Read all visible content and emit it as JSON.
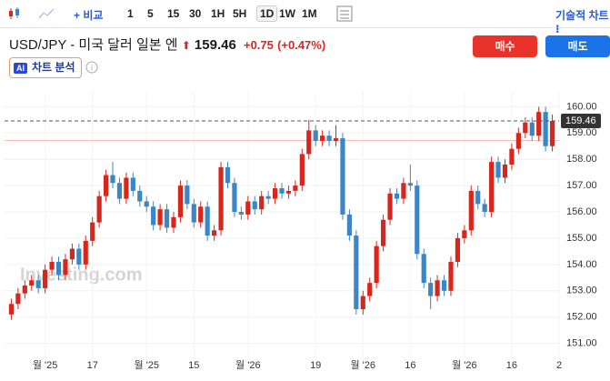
{
  "toolbar": {
    "compare": "+ 비교",
    "intervals": [
      "1",
      "5",
      "15",
      "30",
      "1H",
      "5H",
      "1D",
      "1W",
      "1M"
    ],
    "active_interval": "1D",
    "chart_mode": "기술적 차트 ⁝"
  },
  "header": {
    "title": "USD/JPY - 미국 달러 일본 엔",
    "change": "+0.75",
    "change_pct": "(+0.47%)",
    "buy": "매수",
    "sell": "매도",
    "ai_badge": "AI",
    "ai_label": "차트 분석",
    "watermark": "Investing.com"
  },
  "chart_data": {
    "type": "candlestick",
    "last_price": 159.46,
    "reference_line": 158.71,
    "up_color": "#d9261c",
    "down_color": "#3d86c6",
    "grid": true,
    "xlim": [
      -1,
      81
    ],
    "xticks": [
      {
        "value": 5,
        "label": "월 '25"
      },
      {
        "value": 12,
        "label": "17"
      },
      {
        "value": 20,
        "label": "월 '25"
      },
      {
        "value": 27,
        "label": "15"
      },
      {
        "value": 35,
        "label": "월 '26"
      },
      {
        "value": 45,
        "label": "19"
      },
      {
        "value": 52,
        "label": "월 '26"
      },
      {
        "value": 59,
        "label": "16"
      },
      {
        "value": 67,
        "label": "월 '26"
      },
      {
        "value": 74,
        "label": "16"
      },
      {
        "value": 81,
        "label": "2"
      }
    ],
    "ylim": [
      150.4,
      160.6
    ],
    "yticks": [
      {
        "value": 151,
        "label": "151.00"
      },
      {
        "value": 152,
        "label": "152.00"
      },
      {
        "value": 153,
        "label": "153.00"
      },
      {
        "value": 154,
        "label": "154.00"
      },
      {
        "value": 155,
        "label": "155.00"
      },
      {
        "value": 156,
        "label": "156.00"
      },
      {
        "value": 157,
        "label": "157.00"
      },
      {
        "value": 158,
        "label": "158.00"
      },
      {
        "value": 159,
        "label": "159.00"
      },
      {
        "value": 160,
        "label": "160.00"
      }
    ],
    "open": [
      152.1,
      152.5,
      152.9,
      153.2,
      153.4,
      153.1,
      153.8,
      154.1,
      153.6,
      154.2,
      154.6,
      154.0,
      154.9,
      155.6,
      156.6,
      157.4,
      157.1,
      156.5,
      157.3,
      156.8,
      156.4,
      156.2,
      155.5,
      156.1,
      155.4,
      155.8,
      157.0,
      156.3,
      155.6,
      156.2,
      155.1,
      155.3,
      157.7,
      157.1,
      156.0,
      155.9,
      156.4,
      156.1,
      156.6,
      156.5,
      156.9,
      156.7,
      156.8,
      157.0,
      158.2,
      159.1,
      158.7,
      158.9,
      158.7,
      158.8,
      155.9,
      155.1,
      152.3,
      152.8,
      153.3,
      154.7,
      155.7,
      156.7,
      156.5,
      157.1,
      157.0,
      154.4,
      153.3,
      152.8,
      153.4,
      153.0,
      154.1,
      155.0,
      155.3,
      156.8,
      156.3,
      156.0,
      157.9,
      157.3,
      157.8,
      158.4,
      159.0,
      159.4,
      158.9,
      159.8,
      158.5
    ],
    "high": [
      152.7,
      153.1,
      153.4,
      153.6,
      153.6,
      154.0,
      154.3,
      154.3,
      154.4,
      154.8,
      154.8,
      155.1,
      155.8,
      156.8,
      157.6,
      157.9,
      157.3,
      157.5,
      157.5,
      157.0,
      156.6,
      156.4,
      156.3,
      156.3,
      156.0,
      157.2,
      157.2,
      156.5,
      156.4,
      156.4,
      155.5,
      157.9,
      157.9,
      157.3,
      156.2,
      156.6,
      156.6,
      156.8,
      156.8,
      157.1,
      157.1,
      157.0,
      157.2,
      158.4,
      159.5,
      159.3,
      159.1,
      159.1,
      159.3,
      159.0,
      156.1,
      155.3,
      153.0,
      153.5,
      154.9,
      155.9,
      156.9,
      156.9,
      157.3,
      157.8,
      157.2,
      154.6,
      153.5,
      153.6,
      153.6,
      154.3,
      155.2,
      155.5,
      157.0,
      157.0,
      156.5,
      158.1,
      158.1,
      158.0,
      158.6,
      159.2,
      159.6,
      159.6,
      160.0,
      160.0,
      159.7
    ],
    "low": [
      151.9,
      152.3,
      152.7,
      153.0,
      152.9,
      152.9,
      153.6,
      153.4,
      153.4,
      154.0,
      153.8,
      153.8,
      154.7,
      155.4,
      156.4,
      156.9,
      156.3,
      156.3,
      156.6,
      156.2,
      156.0,
      155.3,
      155.3,
      155.2,
      155.2,
      155.6,
      156.1,
      155.4,
      155.4,
      154.9,
      154.9,
      155.1,
      156.9,
      155.8,
      155.7,
      155.7,
      155.9,
      155.9,
      156.3,
      156.3,
      156.5,
      156.5,
      156.6,
      156.8,
      158.0,
      158.5,
      158.5,
      158.5,
      158.5,
      155.7,
      154.9,
      152.1,
      152.1,
      152.6,
      153.1,
      154.5,
      155.5,
      156.3,
      156.3,
      156.8,
      154.2,
      153.1,
      152.3,
      152.6,
      152.8,
      152.8,
      153.9,
      154.8,
      155.1,
      156.1,
      155.8,
      155.8,
      157.1,
      157.1,
      157.6,
      158.2,
      158.8,
      158.7,
      158.7,
      158.3,
      158.3
    ],
    "close": [
      152.5,
      152.9,
      153.2,
      153.4,
      153.1,
      153.8,
      154.1,
      153.6,
      154.2,
      154.6,
      154.0,
      154.9,
      155.6,
      156.6,
      157.4,
      157.1,
      156.5,
      157.3,
      156.8,
      156.4,
      156.2,
      155.5,
      156.1,
      155.4,
      155.8,
      157.0,
      156.3,
      155.6,
      156.2,
      155.1,
      155.3,
      157.7,
      157.1,
      156.0,
      155.9,
      156.4,
      156.1,
      156.6,
      156.5,
      156.9,
      156.7,
      156.8,
      157.0,
      158.2,
      159.1,
      158.7,
      158.9,
      158.7,
      158.8,
      155.9,
      155.1,
      152.3,
      152.8,
      153.3,
      154.7,
      155.7,
      156.7,
      156.5,
      157.1,
      157.0,
      154.4,
      153.3,
      152.8,
      153.4,
      153.0,
      154.1,
      155.0,
      155.3,
      156.8,
      156.3,
      156.0,
      157.9,
      157.3,
      157.8,
      158.4,
      159.0,
      159.4,
      158.9,
      159.8,
      158.5,
      159.46
    ]
  }
}
